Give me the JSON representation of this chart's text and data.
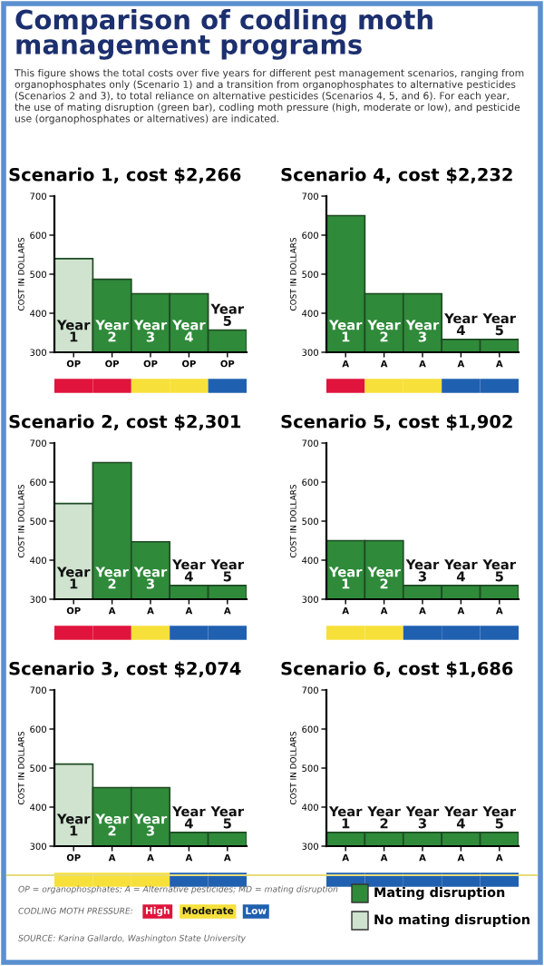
{
  "chart_data": [
    {
      "type": "other",
      "title": "Comparison of codling moth\nmanagement programs",
      "subtitle": "This figure shows the total costs over five years for different pest management scenarios, ranging from organophosphates only (Scenario 1) and a transition from organophosphates to alternative pesticides (Scenarios 2 and 3), to total reliance on alternative pesticides (Scenarios 4, 5, and 6). For each year, the use of mating disruption (green bar), codling moth pressure (high, moderate or low), and pesticide use (organophosphates or alternatives) are indicated."
    },
    {
      "type": "bar",
      "title": "Scenario 1, cost $2,266",
      "ylabel": "COST IN DOLLARS",
      "categories": [
        "Year\n1",
        "Year\n2",
        "Year\n3",
        "Year\n4",
        "Year\n5"
      ],
      "values": [
        540,
        487,
        450,
        450,
        357
      ],
      "colors": [
        "#cfe3cf",
        "#2f8a3a",
        "#2f8a3a",
        "#2f8a3a",
        "#2f8a3a"
      ],
      "ylim": [
        300,
        700
      ],
      "yticks": [
        300,
        400,
        500,
        600,
        700
      ],
      "annotations": [
        "OP",
        "OP",
        "OP",
        "OP",
        "OP"
      ],
      "grid": false
    },
    {
      "type": "bar",
      "title": "Scenario 4, cost $2,232",
      "ylabel": "COST IN DOLLARS",
      "categories": [
        "Year\n1",
        "Year\n2",
        "Year\n3",
        "Year\n4",
        "Year\n5"
      ],
      "values": [
        650,
        450,
        450,
        333,
        333
      ],
      "colors": [
        "#2f8a3a",
        "#2f8a3a",
        "#2f8a3a",
        "#2f8a3a",
        "#2f8a3a"
      ],
      "ylim": [
        300,
        700
      ],
      "yticks": [
        300,
        400,
        500,
        600,
        700
      ],
      "annotations": [
        "A",
        "A",
        "A",
        "A",
        "A"
      ],
      "grid": false
    },
    {
      "type": "bar",
      "title": "Scenario 2, cost $2,301",
      "ylabel": "COST IN DOLLARS",
      "categories": [
        "Year\n1",
        "Year\n2",
        "Year\n3",
        "Year\n4",
        "Year\n5"
      ],
      "values": [
        545,
        650,
        447,
        335,
        335
      ],
      "colors": [
        "#cfe3cf",
        "#2f8a3a",
        "#2f8a3a",
        "#2f8a3a",
        "#2f8a3a"
      ],
      "ylim": [
        300,
        700
      ],
      "yticks": [
        300,
        400,
        500,
        600,
        700
      ],
      "annotations": [
        "OP",
        "A",
        "A",
        "A",
        "A"
      ],
      "grid": false
    },
    {
      "type": "bar",
      "title": "Scenario 5, cost $1,902",
      "ylabel": "COST IN DOLLARS",
      "categories": [
        "Year\n1",
        "Year\n2",
        "Year\n3",
        "Year\n4",
        "Year\n5"
      ],
      "values": [
        450,
        450,
        335,
        335,
        335
      ],
      "colors": [
        "#2f8a3a",
        "#2f8a3a",
        "#2f8a3a",
        "#2f8a3a",
        "#2f8a3a"
      ],
      "ylim": [
        300,
        700
      ],
      "yticks": [
        300,
        400,
        500,
        600,
        700
      ],
      "annotations": [
        "A",
        "A",
        "A",
        "A",
        "A"
      ],
      "grid": false
    },
    {
      "type": "bar",
      "title": "Scenario 3, cost $2,074",
      "ylabel": "COST IN DOLLARS",
      "categories": [
        "Year\n1",
        "Year\n2",
        "Year\n3",
        "Year\n4",
        "Year\n5"
      ],
      "values": [
        510,
        450,
        450,
        335,
        335
      ],
      "colors": [
        "#cfe3cf",
        "#2f8a3a",
        "#2f8a3a",
        "#2f8a3a",
        "#2f8a3a"
      ],
      "ylim": [
        300,
        700
      ],
      "yticks": [
        300,
        400,
        500,
        600,
        700
      ],
      "annotations": [
        "OP",
        "A",
        "A",
        "A",
        "A"
      ],
      "grid": false
    },
    {
      "type": "bar",
      "title": "Scenario 6, cost $1,686",
      "ylabel": "COST IN DOLLARS",
      "categories": [
        "Year\n1",
        "Year\n2",
        "Year\n3",
        "Year\n4",
        "Year\n5"
      ],
      "values": [
        335,
        335,
        335,
        335,
        335
      ],
      "colors": [
        "#2f8a3a",
        "#2f8a3a",
        "#2f8a3a",
        "#2f8a3a",
        "#2f8a3a"
      ],
      "ylim": [
        300,
        700
      ],
      "yticks": [
        300,
        400,
        500,
        600,
        700
      ],
      "annotations": [
        "A",
        "A",
        "A",
        "A",
        "A"
      ],
      "grid": false
    },
    {
      "type": "other",
      "categories": [
        "High",
        "Moderate",
        "Low",
        "Mating disruption",
        "No mating disruption"
      ],
      "colors": [
        "#e0143c",
        "#f7e03a",
        "#2060b0",
        "#2f8a3a",
        "#cfe3cf"
      ],
      "annotations": [
        "OP = organophosphates; A = Alternative pesticides; MD = mating disruption",
        "CODLING MOTH PRESSURE:",
        "SOURCE: Karina Gallardo, Washington State University"
      ]
    }
  ]
}
